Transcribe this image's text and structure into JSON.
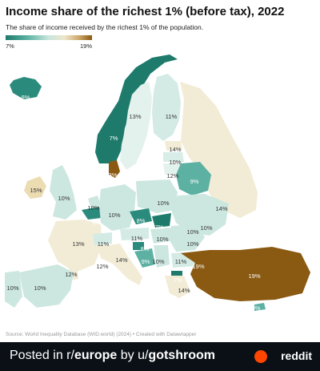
{
  "title": "Income share of the richest 1% (before tax), 2022",
  "subtitle": "The share of income received by the richest 1% of the population.",
  "legend": {
    "min_label": "7%",
    "max_label": "19%",
    "colors": [
      "#1e7b6c",
      "#5cb1a3",
      "#c9e6de",
      "#eee6cc",
      "#cda86a",
      "#8a5a12"
    ]
  },
  "map_labels": [
    {
      "country": "Iceland",
      "value": "8%"
    },
    {
      "country": "Norway",
      "value": "7%"
    },
    {
      "country": "Sweden",
      "value": "13%"
    },
    {
      "country": "Finland",
      "value": "11%"
    },
    {
      "country": "Denmark",
      "value": "13%"
    },
    {
      "country": "Ireland",
      "value": "15%"
    },
    {
      "country": "United Kingdom",
      "value": "10%"
    },
    {
      "country": "Estonia",
      "value": "14%"
    },
    {
      "country": "Latvia",
      "value": "10%"
    },
    {
      "country": "Lithuania",
      "value": "12%"
    },
    {
      "country": "Belarus",
      "value": "9%"
    },
    {
      "country": "Russia",
      "value": "14%"
    },
    {
      "country": "Poland",
      "value": "10%"
    },
    {
      "country": "Ukraine",
      "value": "10%"
    },
    {
      "country": "Netherlands",
      "value": "10%"
    },
    {
      "country": "Belgium",
      "value": "8%"
    },
    {
      "country": "Germany",
      "value": "10%"
    },
    {
      "country": "Czechia",
      "value": "8%"
    },
    {
      "country": "Slovakia",
      "value": "7%"
    },
    {
      "country": "Austria",
      "value": "11%"
    },
    {
      "country": "Hungary",
      "value": "10%"
    },
    {
      "country": "Moldova",
      "value": "10%"
    },
    {
      "country": "Romania",
      "value": "10%"
    },
    {
      "country": "France",
      "value": "13%"
    },
    {
      "country": "Switzerland",
      "value": "11%"
    },
    {
      "country": "Slovenia",
      "value": "8%"
    },
    {
      "country": "Croatia",
      "value": "9%"
    },
    {
      "country": "Serbia",
      "value": "10%"
    },
    {
      "country": "Bulgaria",
      "value": "11%"
    },
    {
      "country": "Italy",
      "value": "12%"
    },
    {
      "country": "Monaco",
      "value": "14%"
    },
    {
      "country": "North Macedonia",
      "value": "7%"
    },
    {
      "country": "Turkey (west)",
      "value": "19%"
    },
    {
      "country": "Turkey (east)",
      "value": "19%"
    },
    {
      "country": "Greece",
      "value": "14%"
    },
    {
      "country": "Spain",
      "value": "10%"
    },
    {
      "country": "Portugal",
      "value": "10%"
    },
    {
      "country": "Corsica",
      "value": "12%"
    },
    {
      "country": "Cyprus",
      "value": "9%"
    }
  ],
  "source": "Source: World Inequality Database (WID.world) (2024) • Created with Datawrapper",
  "footer": {
    "prefix": "Posted in r/",
    "subreddit": "europe",
    "middle": " by u/",
    "user": "gotshroom",
    "brand": "reddit"
  }
}
